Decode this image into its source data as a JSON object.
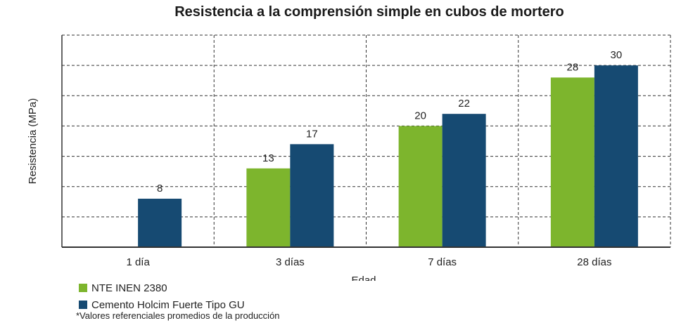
{
  "chart_data": {
    "type": "bar",
    "title": "Resistencia a la comprensión simple en cubos de mortero",
    "xlabel": "Edad",
    "ylabel": "Resistencia (MPa)",
    "ylim": [
      0,
      30
    ],
    "grid": true,
    "categories": [
      "1 día",
      "3 días",
      "7 días",
      "28 días"
    ],
    "series": [
      {
        "name": "NTE INEN 2380",
        "color": "#7db52d",
        "values": [
          null,
          13,
          20,
          28
        ]
      },
      {
        "name": "Cemento Holcim Fuerte Tipo GU",
        "color": "#164a72",
        "values": [
          8,
          17,
          22,
          30
        ]
      }
    ],
    "data_labels": [
      [
        null,
        "13",
        "20",
        "28"
      ],
      [
        "8",
        "17",
        "22",
        "30"
      ]
    ],
    "legend_position": "bottom-left"
  },
  "footnote": "*Valores referenciales promedios de la producción"
}
